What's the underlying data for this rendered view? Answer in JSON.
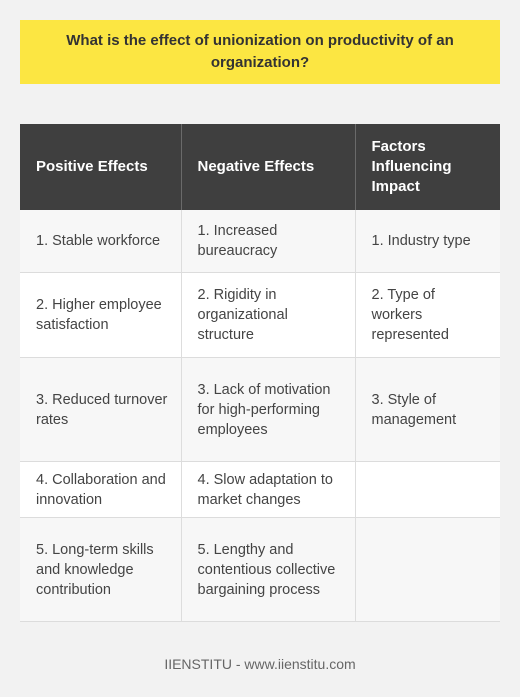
{
  "title": "What is the effect of unionization on productivity of an organization?",
  "table": {
    "headers": [
      "Positive Effects",
      "Negative Effects",
      "Factors Influencing Impact"
    ],
    "rows": [
      [
        "1. Stable workforce",
        "1. Increased bureaucracy",
        "1. Industry type"
      ],
      [
        "2. Higher employee satisfaction",
        "2. Rigidity in organizational structure",
        "2. Type of workers represented"
      ],
      [
        "3. Reduced turnover rates",
        "3. Lack of motivation for high-performing employees",
        "3. Style of management"
      ],
      [
        "4. Collaboration and innovation",
        "4. Slow adaptation to market changes",
        ""
      ],
      [
        "5. Long-term skills and knowledge contribution",
        "5. Lengthy and contentious collective bargaining process",
        ""
      ]
    ]
  },
  "footer": "IIENSTITU - www.iienstitu.com"
}
